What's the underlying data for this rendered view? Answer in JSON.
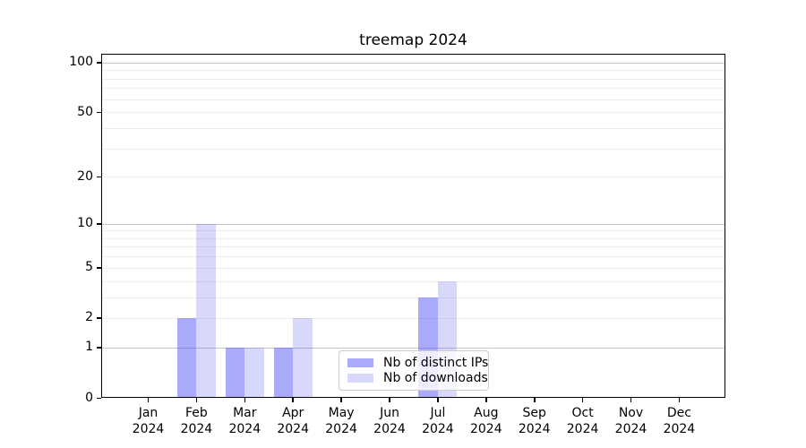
{
  "chart_data": {
    "type": "bar",
    "title": "treemap 2024",
    "categories": [
      "Jan",
      "Feb",
      "Mar",
      "Apr",
      "May",
      "Jun",
      "Jul",
      "Aug",
      "Sep",
      "Oct",
      "Nov",
      "Dec"
    ],
    "category_year": "2024",
    "series": [
      {
        "name": "Nb of distinct IPs",
        "color": "rgba(85,85,245,0.50)",
        "values": [
          0,
          2,
          1,
          1,
          0,
          0,
          3,
          0,
          0,
          0,
          0,
          0
        ]
      },
      {
        "name": "Nb of downloads",
        "color": "rgba(85,85,245,0.23)",
        "values": [
          0,
          10,
          1,
          2,
          0,
          0,
          4,
          0,
          0,
          0,
          0,
          0
        ]
      }
    ],
    "yscale": "log1p",
    "ylim": [
      0,
      113
    ],
    "yticks": [
      0,
      1,
      2,
      5,
      10,
      20,
      50,
      100
    ],
    "grid_minor_values": [
      2,
      3,
      4,
      5,
      6,
      7,
      8,
      9,
      20,
      30,
      40,
      50,
      60,
      70,
      80,
      90
    ],
    "grid_major_values": [
      1,
      10,
      100
    ],
    "grid": true,
    "legend_position": "lower-center",
    "colors": {
      "spine": "#000000",
      "grid_minor": "#ededed",
      "grid_major": "#c4c4c4",
      "legend_border": "#cccccc",
      "text": "#000000"
    }
  }
}
